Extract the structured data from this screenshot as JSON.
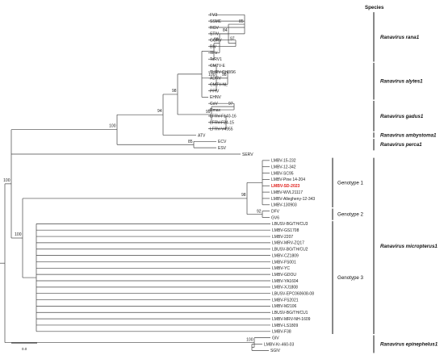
{
  "header": "Species",
  "taxa": [
    "FV3",
    "SSME",
    "RGV",
    "STIV",
    "GGRV",
    "BIV",
    "TFV",
    "ToRV1",
    "CMTV-E",
    "THRV-CH8/96",
    "ADRV",
    "CMTV-NL",
    "PPIV",
    "EHNV",
    "CoV",
    "Rmax",
    "LFRV-F140-16",
    "LFRV-F24-15",
    "LFRV-V4955",
    "ATV",
    "ECV",
    "ESV",
    "SERV",
    "LMBV-15-232",
    "LMBV-12-342",
    "LMBV-SC95",
    "LMBV-Pine 14-204",
    "LMBV-SD-2023",
    "LMBV-WVL21117",
    "LMBV-Allegheny-12-343",
    "LMBV-130903",
    "DFV",
    "GV6",
    "LBUSV-BG/TH/CU3",
    "LMBV-GS1708",
    "LMBV-2207",
    "LMBV-MRV-ZQ17",
    "LBUSV-BG/TH/CU2",
    "LMBV-CZ1809",
    "LMBV-FS001",
    "LMBV-YC",
    "LMBV-GDOU",
    "LMBV-YA1604",
    "LMBV-XJ1808",
    "LBUSV-EPC060608-08",
    "LMBV-FS2021",
    "LMBV-M2106",
    "LBUSV-BG/TH/CU1",
    "LMBV-MRV-NH-1609",
    "LMBV-LS1809",
    "LMBV-F38",
    "GIV",
    "LMBV-Kr-460-03",
    "SGIV"
  ],
  "highlight": "LMBV-SD-2023",
  "highlight_color": "#e0201c",
  "bootstrap": [
    "85",
    "97",
    "84",
    "98",
    "98",
    "100",
    "97",
    "99",
    "98",
    "94",
    "100",
    "85",
    "100",
    "98",
    "92",
    "100",
    "100"
  ],
  "species": [
    "Ranavirus rana1",
    "Ranavirus alytes1",
    "Ranavirus gadus1",
    "Ranavirus ambystoma1",
    "Ranavirus perca1",
    "Ranavirus micropterus1",
    "Ranavirus epinephelus1"
  ],
  "genotypes": [
    "Genotype 1",
    "Genotype 2",
    "Genotype 3"
  ],
  "scale": "0.0"
}
